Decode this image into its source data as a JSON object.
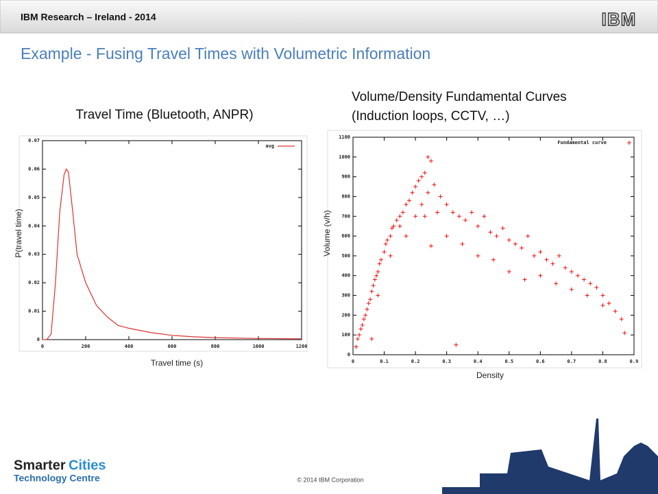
{
  "header": {
    "title": "IBM Research – Ireland - 2014",
    "logo": "IBM"
  },
  "title": "Example - Fusing Travel Times with Volumetric Information",
  "footer": {
    "copyright": "© 2014 IBM Corporation",
    "logo": {
      "smarter": "Smarter",
      "cities": "Cities",
      "centre": "Technology Centre"
    }
  },
  "chart_data": [
    {
      "type": "line",
      "title": "Travel Time (Bluetooth, ANPR)",
      "x_label": "Travel time (s)",
      "y_label": "P(travel time)",
      "legend": "upper right",
      "grid": false,
      "series": [
        {
          "name": "avg",
          "color": "#e03030",
          "x": [
            0,
            20,
            40,
            60,
            80,
            100,
            110,
            120,
            140,
            160,
            180,
            200,
            250,
            300,
            350,
            400,
            500,
            600,
            700,
            800,
            1000,
            1200
          ],
          "values": [
            0,
            0,
            0.002,
            0.02,
            0.045,
            0.058,
            0.06,
            0.059,
            0.045,
            0.03,
            0.025,
            0.02,
            0.012,
            0.008,
            0.005,
            0.004,
            0.0025,
            0.0015,
            0.001,
            0.0007,
            0.0004,
            0.0003
          ]
        }
      ],
      "xlim": [
        0,
        1200
      ],
      "xticks": [
        0,
        200,
        400,
        600,
        800,
        1000,
        1200
      ],
      "ylim": [
        0,
        0.07
      ],
      "yticks": [
        0,
        0.01,
        0.02,
        0.03,
        0.04,
        0.05,
        0.06,
        0.07
      ]
    },
    {
      "type": "scatter",
      "title": [
        "Volume/Density Fundamental Curves",
        "(Induction loops, CCTV, …)"
      ],
      "x_label": "Density",
      "y_label": "Volume (v/h)",
      "legend": "upper right",
      "grid": false,
      "series": [
        {
          "name": "Fundamental curve",
          "color": "#ee1111",
          "x": [
            0.01,
            0.015,
            0.02,
            0.025,
            0.03,
            0.035,
            0.04,
            0.045,
            0.05,
            0.055,
            0.06,
            0.065,
            0.07,
            0.075,
            0.08,
            0.085,
            0.09,
            0.1,
            0.105,
            0.11,
            0.12,
            0.125,
            0.13,
            0.14,
            0.15,
            0.16,
            0.17,
            0.18,
            0.19,
            0.2,
            0.21,
            0.22,
            0.23,
            0.24,
            0.25,
            0.2,
            0.22,
            0.24,
            0.26,
            0.28,
            0.3,
            0.32,
            0.34,
            0.36,
            0.38,
            0.4,
            0.42,
            0.44,
            0.46,
            0.48,
            0.5,
            0.52,
            0.54,
            0.56,
            0.58,
            0.6,
            0.62,
            0.64,
            0.66,
            0.68,
            0.7,
            0.72,
            0.74,
            0.76,
            0.78,
            0.8,
            0.82,
            0.84,
            0.86,
            0.87,
            0.3,
            0.35,
            0.4,
            0.45,
            0.5,
            0.55,
            0.6,
            0.65,
            0.7,
            0.75,
            0.8,
            0.06,
            0.33,
            0.17,
            0.25,
            0.08,
            0.12,
            0.15,
            0.23,
            0.27
          ],
          "values": [
            40,
            80,
            100,
            130,
            150,
            180,
            200,
            230,
            260,
            280,
            320,
            350,
            380,
            400,
            420,
            460,
            480,
            520,
            560,
            580,
            600,
            640,
            650,
            680,
            700,
            720,
            760,
            780,
            820,
            850,
            880,
            900,
            920,
            1000,
            980,
            700,
            760,
            820,
            860,
            800,
            760,
            720,
            700,
            680,
            720,
            650,
            700,
            620,
            600,
            640,
            580,
            560,
            540,
            600,
            500,
            520,
            480,
            460,
            500,
            440,
            420,
            400,
            380,
            360,
            340,
            300,
            260,
            220,
            180,
            110,
            600,
            560,
            500,
            480,
            420,
            380,
            400,
            360,
            330,
            300,
            250,
            80,
            50,
            600,
            550,
            300,
            500,
            650,
            700,
            720
          ]
        }
      ],
      "xlim": [
        0,
        0.9
      ],
      "xticks": [
        0,
        0.1,
        0.2,
        0.3,
        0.4,
        0.5,
        0.6,
        0.7,
        0.8,
        0.9
      ],
      "ylim": [
        0,
        1100
      ],
      "yticks": [
        0,
        100,
        200,
        300,
        400,
        500,
        600,
        700,
        800,
        900,
        1000,
        1100
      ]
    }
  ]
}
